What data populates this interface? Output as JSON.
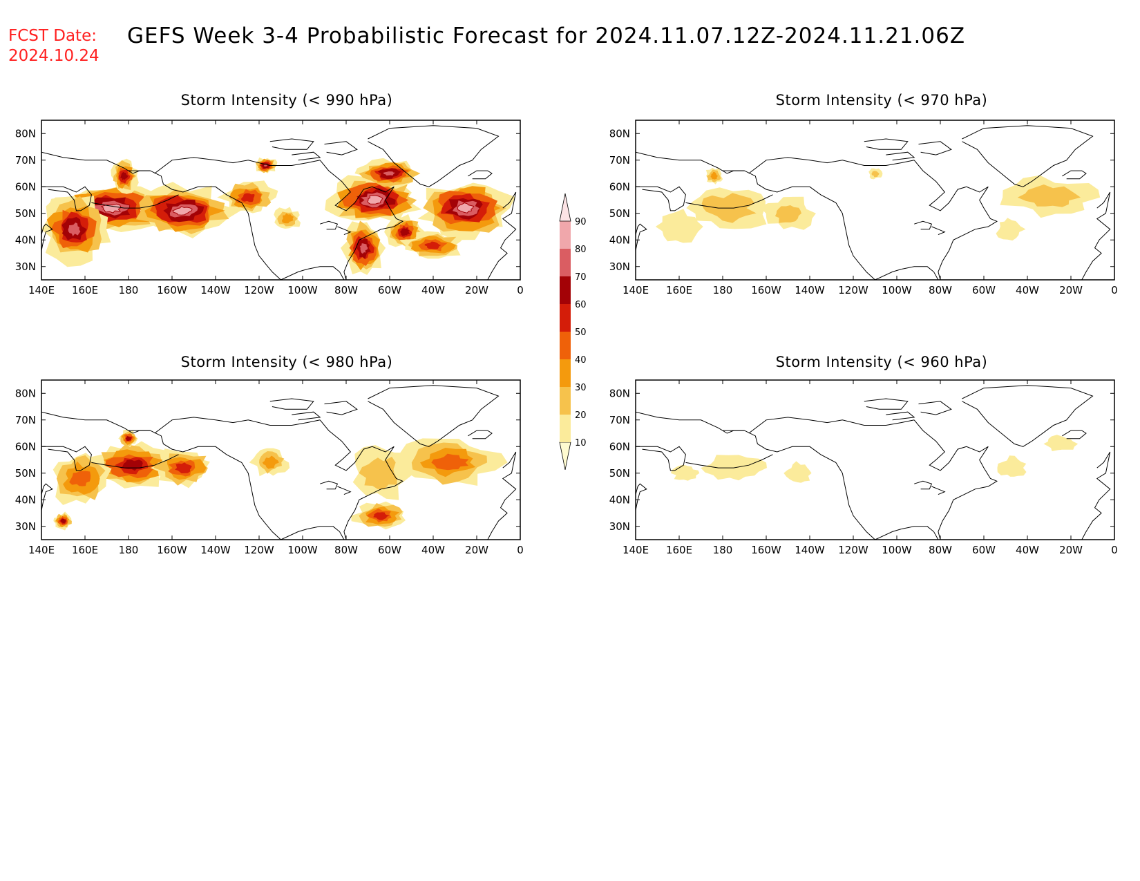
{
  "header": {
    "fcst_label": "FCST Date:",
    "fcst_date": "2024.10.24",
    "title": "GEFS Week 3-4 Probabilistic Forecast for 2024.11.07.12Z-2024.11.21.06Z"
  },
  "map_axes": {
    "lon_labels": [
      "140E",
      "160E",
      "180",
      "160W",
      "140W",
      "120W",
      "100W",
      "80W",
      "60W",
      "40W",
      "20W",
      "0"
    ],
    "lon_values": [
      140,
      160,
      180,
      200,
      220,
      240,
      260,
      280,
      300,
      320,
      340,
      360
    ],
    "lat_labels": [
      "80N",
      "70N",
      "60N",
      "50N",
      "40N",
      "30N"
    ],
    "lat_values": [
      80,
      70,
      60,
      50,
      40,
      30
    ],
    "lon_range": [
      140,
      360
    ],
    "lat_range": [
      25,
      85
    ]
  },
  "colorbar": {
    "levels": [
      "10",
      "20",
      "30",
      "40",
      "50",
      "60",
      "70",
      "80",
      "90"
    ],
    "colors": [
      "#fffbd0",
      "#fbeb9b",
      "#f6c24c",
      "#f49a0d",
      "#ef6109",
      "#d41d09",
      "#a30206",
      "#da5d62",
      "#f0a7ab",
      "#fce3e5"
    ]
  },
  "panels": [
    {
      "id": "p990",
      "title": "Storm Intensity (< 990 hPa)",
      "intensity": 1.0,
      "blobs": [
        {
          "lon": 172,
          "lat": 52,
          "level": 8,
          "rl": 26,
          "rt": 9
        },
        {
          "lon": 205,
          "lat": 51,
          "level": 8,
          "rl": 22,
          "rt": 9
        },
        {
          "lon": 155,
          "lat": 44,
          "level": 7,
          "rl": 15,
          "rt": 12
        },
        {
          "lon": 178,
          "lat": 64,
          "level": 6,
          "rl": 6,
          "rt": 6
        },
        {
          "lon": 235,
          "lat": 56,
          "level": 5,
          "rl": 12,
          "rt": 6
        },
        {
          "lon": 243,
          "lat": 68,
          "level": 7,
          "rl": 5,
          "rt": 3
        },
        {
          "lon": 293,
          "lat": 55,
          "level": 8,
          "rl": 20,
          "rt": 9
        },
        {
          "lon": 335,
          "lat": 52,
          "level": 8,
          "rl": 20,
          "rt": 10
        },
        {
          "lon": 288,
          "lat": 37,
          "level": 7,
          "rl": 9,
          "rt": 10
        },
        {
          "lon": 307,
          "lat": 43,
          "level": 6,
          "rl": 8,
          "rt": 6
        },
        {
          "lon": 300,
          "lat": 65,
          "level": 7,
          "rl": 14,
          "rt": 5
        },
        {
          "lon": 253,
          "lat": 48,
          "level": 3,
          "rl": 6,
          "rt": 4
        },
        {
          "lon": 320,
          "lat": 38,
          "level": 5,
          "rl": 14,
          "rt": 5
        }
      ]
    },
    {
      "id": "p970",
      "title": "Storm Intensity (< 970 hPa)",
      "intensity": 0.4,
      "blobs": [
        {
          "lon": 182,
          "lat": 52,
          "level": 2,
          "rl": 20,
          "rt": 8
        },
        {
          "lon": 210,
          "lat": 50,
          "level": 2,
          "rl": 12,
          "rt": 6
        },
        {
          "lon": 160,
          "lat": 45,
          "level": 1,
          "rl": 10,
          "rt": 6
        },
        {
          "lon": 176,
          "lat": 64,
          "level": 3,
          "rl": 4,
          "rt": 3
        },
        {
          "lon": 330,
          "lat": 56,
          "level": 2,
          "rl": 20,
          "rt": 7
        },
        {
          "lon": 312,
          "lat": 44,
          "level": 1,
          "rl": 6,
          "rt": 4
        },
        {
          "lon": 250,
          "lat": 65,
          "level": 2,
          "rl": 3,
          "rt": 2
        }
      ]
    },
    {
      "id": "p980",
      "title": "Storm Intensity (< 980 hPa)",
      "intensity": 0.7,
      "blobs": [
        {
          "lon": 182,
          "lat": 53,
          "level": 6,
          "rl": 20,
          "rt": 8
        },
        {
          "lon": 158,
          "lat": 48,
          "level": 4,
          "rl": 14,
          "rt": 10
        },
        {
          "lon": 205,
          "lat": 52,
          "level": 5,
          "rl": 14,
          "rt": 7
        },
        {
          "lon": 180,
          "lat": 63,
          "level": 6,
          "rl": 4,
          "rt": 3
        },
        {
          "lon": 328,
          "lat": 54,
          "level": 4,
          "rl": 22,
          "rt": 9
        },
        {
          "lon": 296,
          "lat": 50,
          "level": 2,
          "rl": 14,
          "rt": 10
        },
        {
          "lon": 296,
          "lat": 34,
          "level": 5,
          "rl": 12,
          "rt": 5
        },
        {
          "lon": 245,
          "lat": 54,
          "level": 3,
          "rl": 8,
          "rt": 5
        },
        {
          "lon": 150,
          "lat": 32,
          "level": 6,
          "rl": 4,
          "rt": 3
        }
      ]
    },
    {
      "id": "p960",
      "title": "Storm Intensity (< 960 hPa)",
      "intensity": 0.2,
      "blobs": [
        {
          "lon": 185,
          "lat": 52,
          "level": 1,
          "rl": 14,
          "rt": 5
        },
        {
          "lon": 163,
          "lat": 50,
          "level": 1,
          "rl": 6,
          "rt": 3
        },
        {
          "lon": 215,
          "lat": 50,
          "level": 1,
          "rl": 6,
          "rt": 4
        },
        {
          "lon": 313,
          "lat": 52,
          "level": 1,
          "rl": 6,
          "rt": 4
        },
        {
          "lon": 335,
          "lat": 61,
          "level": 1,
          "rl": 7,
          "rt": 3
        }
      ]
    }
  ]
}
